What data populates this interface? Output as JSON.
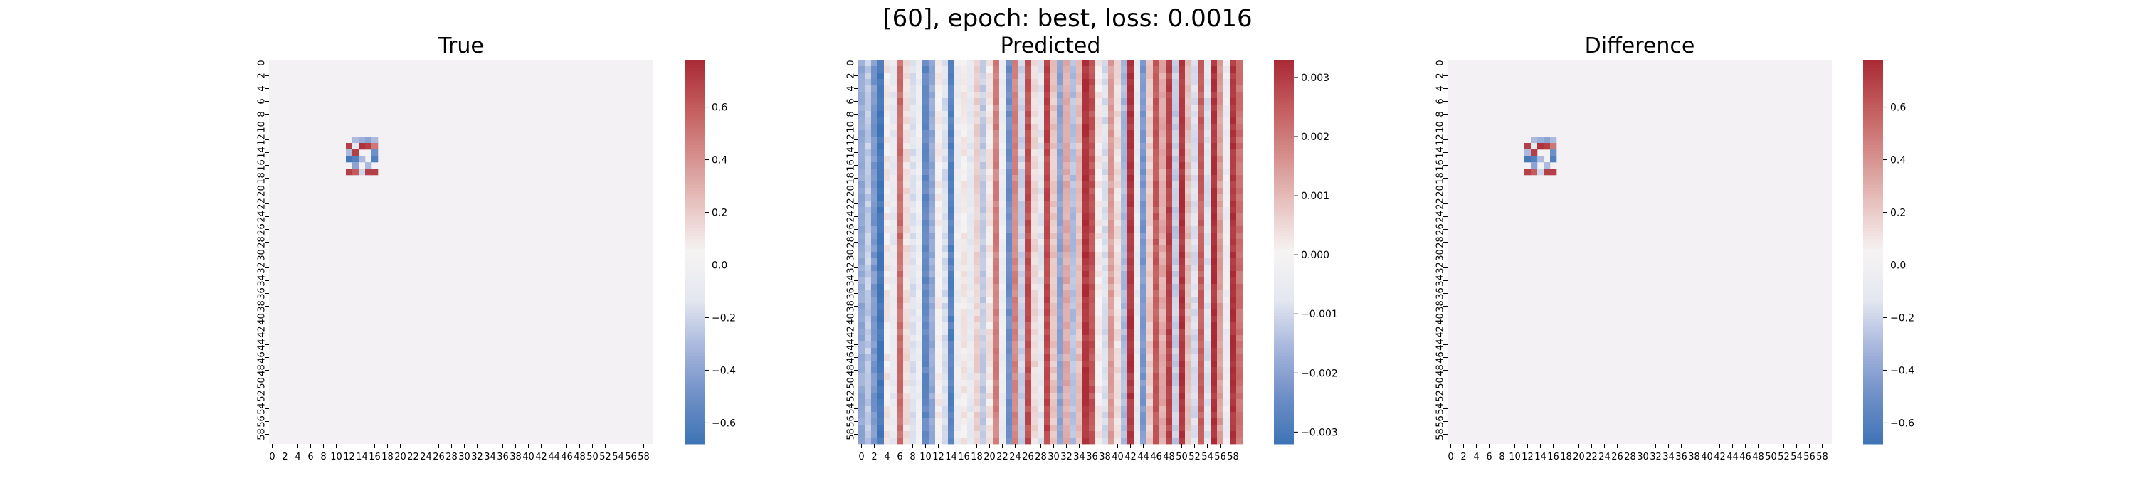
{
  "figure": {
    "suptitle": "[60], epoch: best, loss: 0.0016"
  },
  "colormap": {
    "name": "vlag",
    "stops": [
      "#3e74b5",
      "#6f8fc7",
      "#a7b6dc",
      "#e4e7f0",
      "#f6f3f3",
      "#e7c3c0",
      "#d58f8c",
      "#c35c5d",
      "#a92a35"
    ]
  },
  "chart_data": [
    {
      "type": "heatmap",
      "title": "True",
      "rows": 60,
      "cols": 60,
      "tick_labels": [
        "0",
        "2",
        "4",
        "6",
        "8",
        "10",
        "12",
        "14",
        "16",
        "18",
        "20",
        "22",
        "24",
        "26",
        "28",
        "30",
        "32",
        "34",
        "36",
        "38",
        "40",
        "42",
        "44",
        "46",
        "48",
        "50",
        "52",
        "54",
        "56",
        "58"
      ],
      "background_value": 0.02,
      "cells": [
        {
          "r": 12,
          "c": 13,
          "v": -0.3
        },
        {
          "r": 12,
          "c": 14,
          "v": -0.35
        },
        {
          "r": 12,
          "c": 15,
          "v": -0.4
        },
        {
          "r": 12,
          "c": 16,
          "v": -0.3
        },
        {
          "r": 13,
          "c": 12,
          "v": 0.7
        },
        {
          "r": 13,
          "c": 13,
          "v": -0.1
        },
        {
          "r": 13,
          "c": 14,
          "v": 0.75
        },
        {
          "r": 13,
          "c": 15,
          "v": 0.7
        },
        {
          "r": 13,
          "c": 16,
          "v": 0.5
        },
        {
          "r": 14,
          "c": 12,
          "v": -0.3
        },
        {
          "r": 14,
          "c": 13,
          "v": 0.7
        },
        {
          "r": 14,
          "c": 16,
          "v": -0.5
        },
        {
          "r": 15,
          "c": 12,
          "v": -0.65
        },
        {
          "r": 15,
          "c": 13,
          "v": -0.6
        },
        {
          "r": 15,
          "c": 14,
          "v": -0.3
        },
        {
          "r": 15,
          "c": 16,
          "v": -0.6
        },
        {
          "r": 16,
          "c": 13,
          "v": -0.4
        },
        {
          "r": 16,
          "c": 15,
          "v": -0.3
        },
        {
          "r": 17,
          "c": 12,
          "v": 0.7
        },
        {
          "r": 17,
          "c": 13,
          "v": 0.6
        },
        {
          "r": 17,
          "c": 14,
          "v": -0.2
        },
        {
          "r": 17,
          "c": 15,
          "v": 0.7
        },
        {
          "r": 17,
          "c": 16,
          "v": 0.7
        }
      ],
      "colorbar": {
        "vmin": -0.68,
        "vmax": 0.78,
        "ticks": [
          0.6,
          0.4,
          0.2,
          0.0,
          -0.2,
          -0.4,
          -0.6
        ],
        "tick_labels": [
          "0.6",
          "0.4",
          "0.2",
          "0.0",
          "−0.2",
          "−0.4",
          "−0.6"
        ]
      }
    },
    {
      "type": "heatmap",
      "title": "Predicted",
      "rows": 60,
      "cols": 60,
      "tick_labels": [
        "0",
        "2",
        "4",
        "6",
        "8",
        "10",
        "12",
        "14",
        "16",
        "18",
        "20",
        "22",
        "24",
        "26",
        "28",
        "30",
        "32",
        "34",
        "36",
        "38",
        "40",
        "42",
        "44",
        "46",
        "48",
        "50",
        "52",
        "54",
        "56",
        "58"
      ],
      "column_values": [
        -0.0018,
        -0.0012,
        -0.0022,
        -0.0031,
        0.0002,
        -0.0006,
        0.0022,
        0.0004,
        -0.0008,
        -0.0003,
        -0.0026,
        -0.0018,
        0.0001,
        -0.0009,
        -0.0028,
        -0.0004,
        0.0002,
        -0.0006,
        0.0006,
        -0.0012,
        0.0003,
        0.0019,
        -0.0004,
        -0.0024,
        0.0018,
        -0.0011,
        0.0027,
        0.0005,
        -0.0007,
        0.0028,
        0.0008,
        -0.0019,
        0.0012,
        -0.0014,
        0.0009,
        0.0031,
        0.0026,
        0.0002,
        -0.0009,
        0.0014,
        0.0004,
        -0.0015,
        0.0031,
        -0.0005,
        -0.0022,
        0.0007,
        0.0025,
        0.0012,
        0.0029,
        -0.0012,
        0.0031,
        0.0009,
        -0.0009,
        0.0024,
        -0.0008,
        0.0031,
        0.0014,
        -0.0004,
        0.0031,
        0.0021
      ],
      "colorbar": {
        "vmin": -0.0032,
        "vmax": 0.0033,
        "ticks": [
          0.003,
          0.002,
          0.001,
          0.0,
          -0.001,
          -0.002,
          -0.003
        ],
        "tick_labels": [
          "0.003",
          "0.002",
          "0.001",
          "0.000",
          "−0.001",
          "−0.002",
          "−0.003"
        ]
      }
    },
    {
      "type": "heatmap",
      "title": "Difference",
      "rows": 60,
      "cols": 60,
      "tick_labels": [
        "0",
        "2",
        "4",
        "6",
        "8",
        "10",
        "12",
        "14",
        "16",
        "18",
        "20",
        "22",
        "24",
        "26",
        "28",
        "30",
        "32",
        "34",
        "36",
        "38",
        "40",
        "42",
        "44",
        "46",
        "48",
        "50",
        "52",
        "54",
        "56",
        "58"
      ],
      "background_value": 0.02,
      "cells": [
        {
          "r": 12,
          "c": 13,
          "v": -0.3
        },
        {
          "r": 12,
          "c": 14,
          "v": -0.35
        },
        {
          "r": 12,
          "c": 15,
          "v": -0.4
        },
        {
          "r": 12,
          "c": 16,
          "v": -0.3
        },
        {
          "r": 13,
          "c": 12,
          "v": 0.7
        },
        {
          "r": 13,
          "c": 13,
          "v": -0.1
        },
        {
          "r": 13,
          "c": 14,
          "v": 0.75
        },
        {
          "r": 13,
          "c": 15,
          "v": 0.7
        },
        {
          "r": 13,
          "c": 16,
          "v": 0.5
        },
        {
          "r": 14,
          "c": 12,
          "v": -0.3
        },
        {
          "r": 14,
          "c": 13,
          "v": 0.7
        },
        {
          "r": 14,
          "c": 16,
          "v": -0.5
        },
        {
          "r": 15,
          "c": 12,
          "v": -0.65
        },
        {
          "r": 15,
          "c": 13,
          "v": -0.6
        },
        {
          "r": 15,
          "c": 14,
          "v": -0.3
        },
        {
          "r": 15,
          "c": 16,
          "v": -0.6
        },
        {
          "r": 16,
          "c": 13,
          "v": -0.4
        },
        {
          "r": 16,
          "c": 15,
          "v": -0.3
        },
        {
          "r": 17,
          "c": 12,
          "v": 0.7
        },
        {
          "r": 17,
          "c": 13,
          "v": 0.6
        },
        {
          "r": 17,
          "c": 14,
          "v": -0.2
        },
        {
          "r": 17,
          "c": 15,
          "v": 0.7
        },
        {
          "r": 17,
          "c": 16,
          "v": 0.7
        }
      ],
      "colorbar": {
        "vmin": -0.68,
        "vmax": 0.78,
        "ticks": [
          0.6,
          0.4,
          0.2,
          0.0,
          -0.2,
          -0.4,
          -0.6
        ],
        "tick_labels": [
          "0.6",
          "0.4",
          "0.2",
          "0.0",
          "−0.2",
          "−0.4",
          "−0.6"
        ]
      }
    }
  ]
}
